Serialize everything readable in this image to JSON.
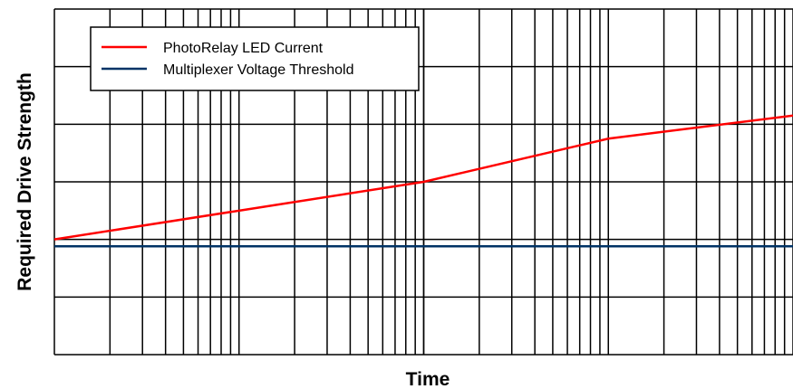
{
  "chart_data": {
    "type": "line",
    "title": "",
    "xlabel": "Time",
    "ylabel": "Required Drive Strength",
    "x_scale": "log",
    "xlim": [
      1,
      10000
    ],
    "ylim": [
      0,
      6
    ],
    "grid": true,
    "legend_position": "top-left",
    "series": [
      {
        "name": "PhotoRelay LED Current",
        "color": "#ff0000",
        "x": [
          1,
          10,
          100,
          1000,
          10000
        ],
        "y": [
          2.0,
          2.5,
          3.0,
          3.75,
          4.15
        ]
      },
      {
        "name": "Multiplexer Voltage Threshold",
        "color": "#003366",
        "x": [
          1,
          10000
        ],
        "y": [
          1.88,
          1.88
        ]
      }
    ]
  }
}
